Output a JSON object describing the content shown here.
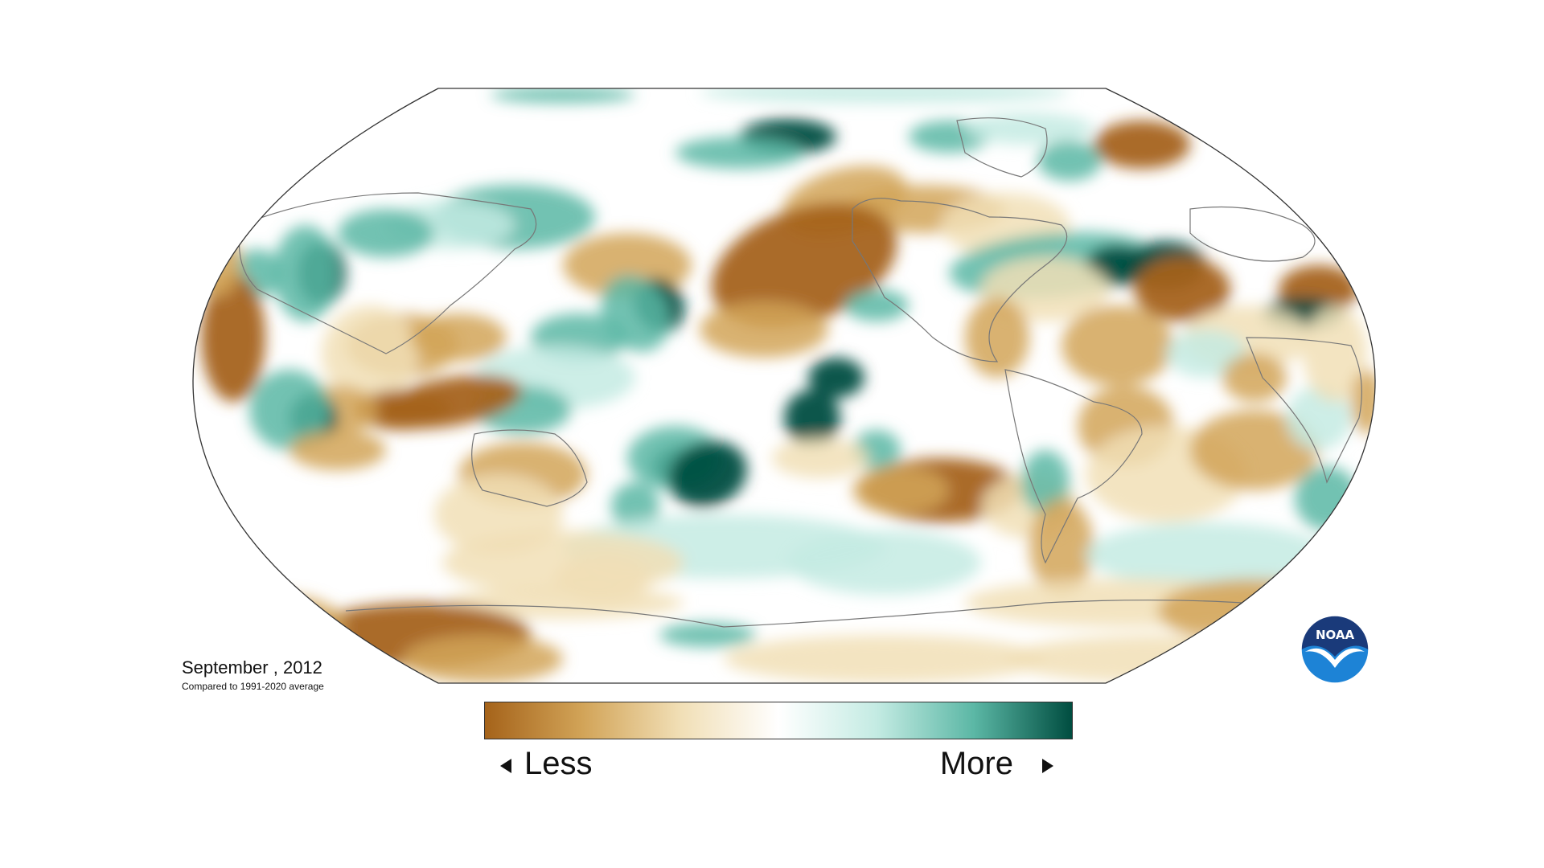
{
  "map": {
    "projection": "robinson",
    "variable": "precipitation anomaly",
    "palette": {
      "less_dark": "#a5631a",
      "less_mid": "#d2a458",
      "less_light": "#f1dfb6",
      "neutral": "#ffffff",
      "more_light": "#c4ebe3",
      "more_mid": "#5bb7a5",
      "more_dark": "#004d40"
    },
    "coastline_color": "#777777"
  },
  "caption": {
    "title": "September , 2012",
    "subtitle": "Compared to 1991-2020 average"
  },
  "legend": {
    "less_label": "Less",
    "more_label": "More",
    "arrow_left_icon": "triangle-left-icon",
    "arrow_right_icon": "triangle-right-icon"
  },
  "logo": {
    "text": "NOAA",
    "icon": "noaa-logo-icon",
    "colors": {
      "top": "#1a3a7a",
      "bottom": "#1d83d6",
      "bird": "#ffffff"
    }
  }
}
